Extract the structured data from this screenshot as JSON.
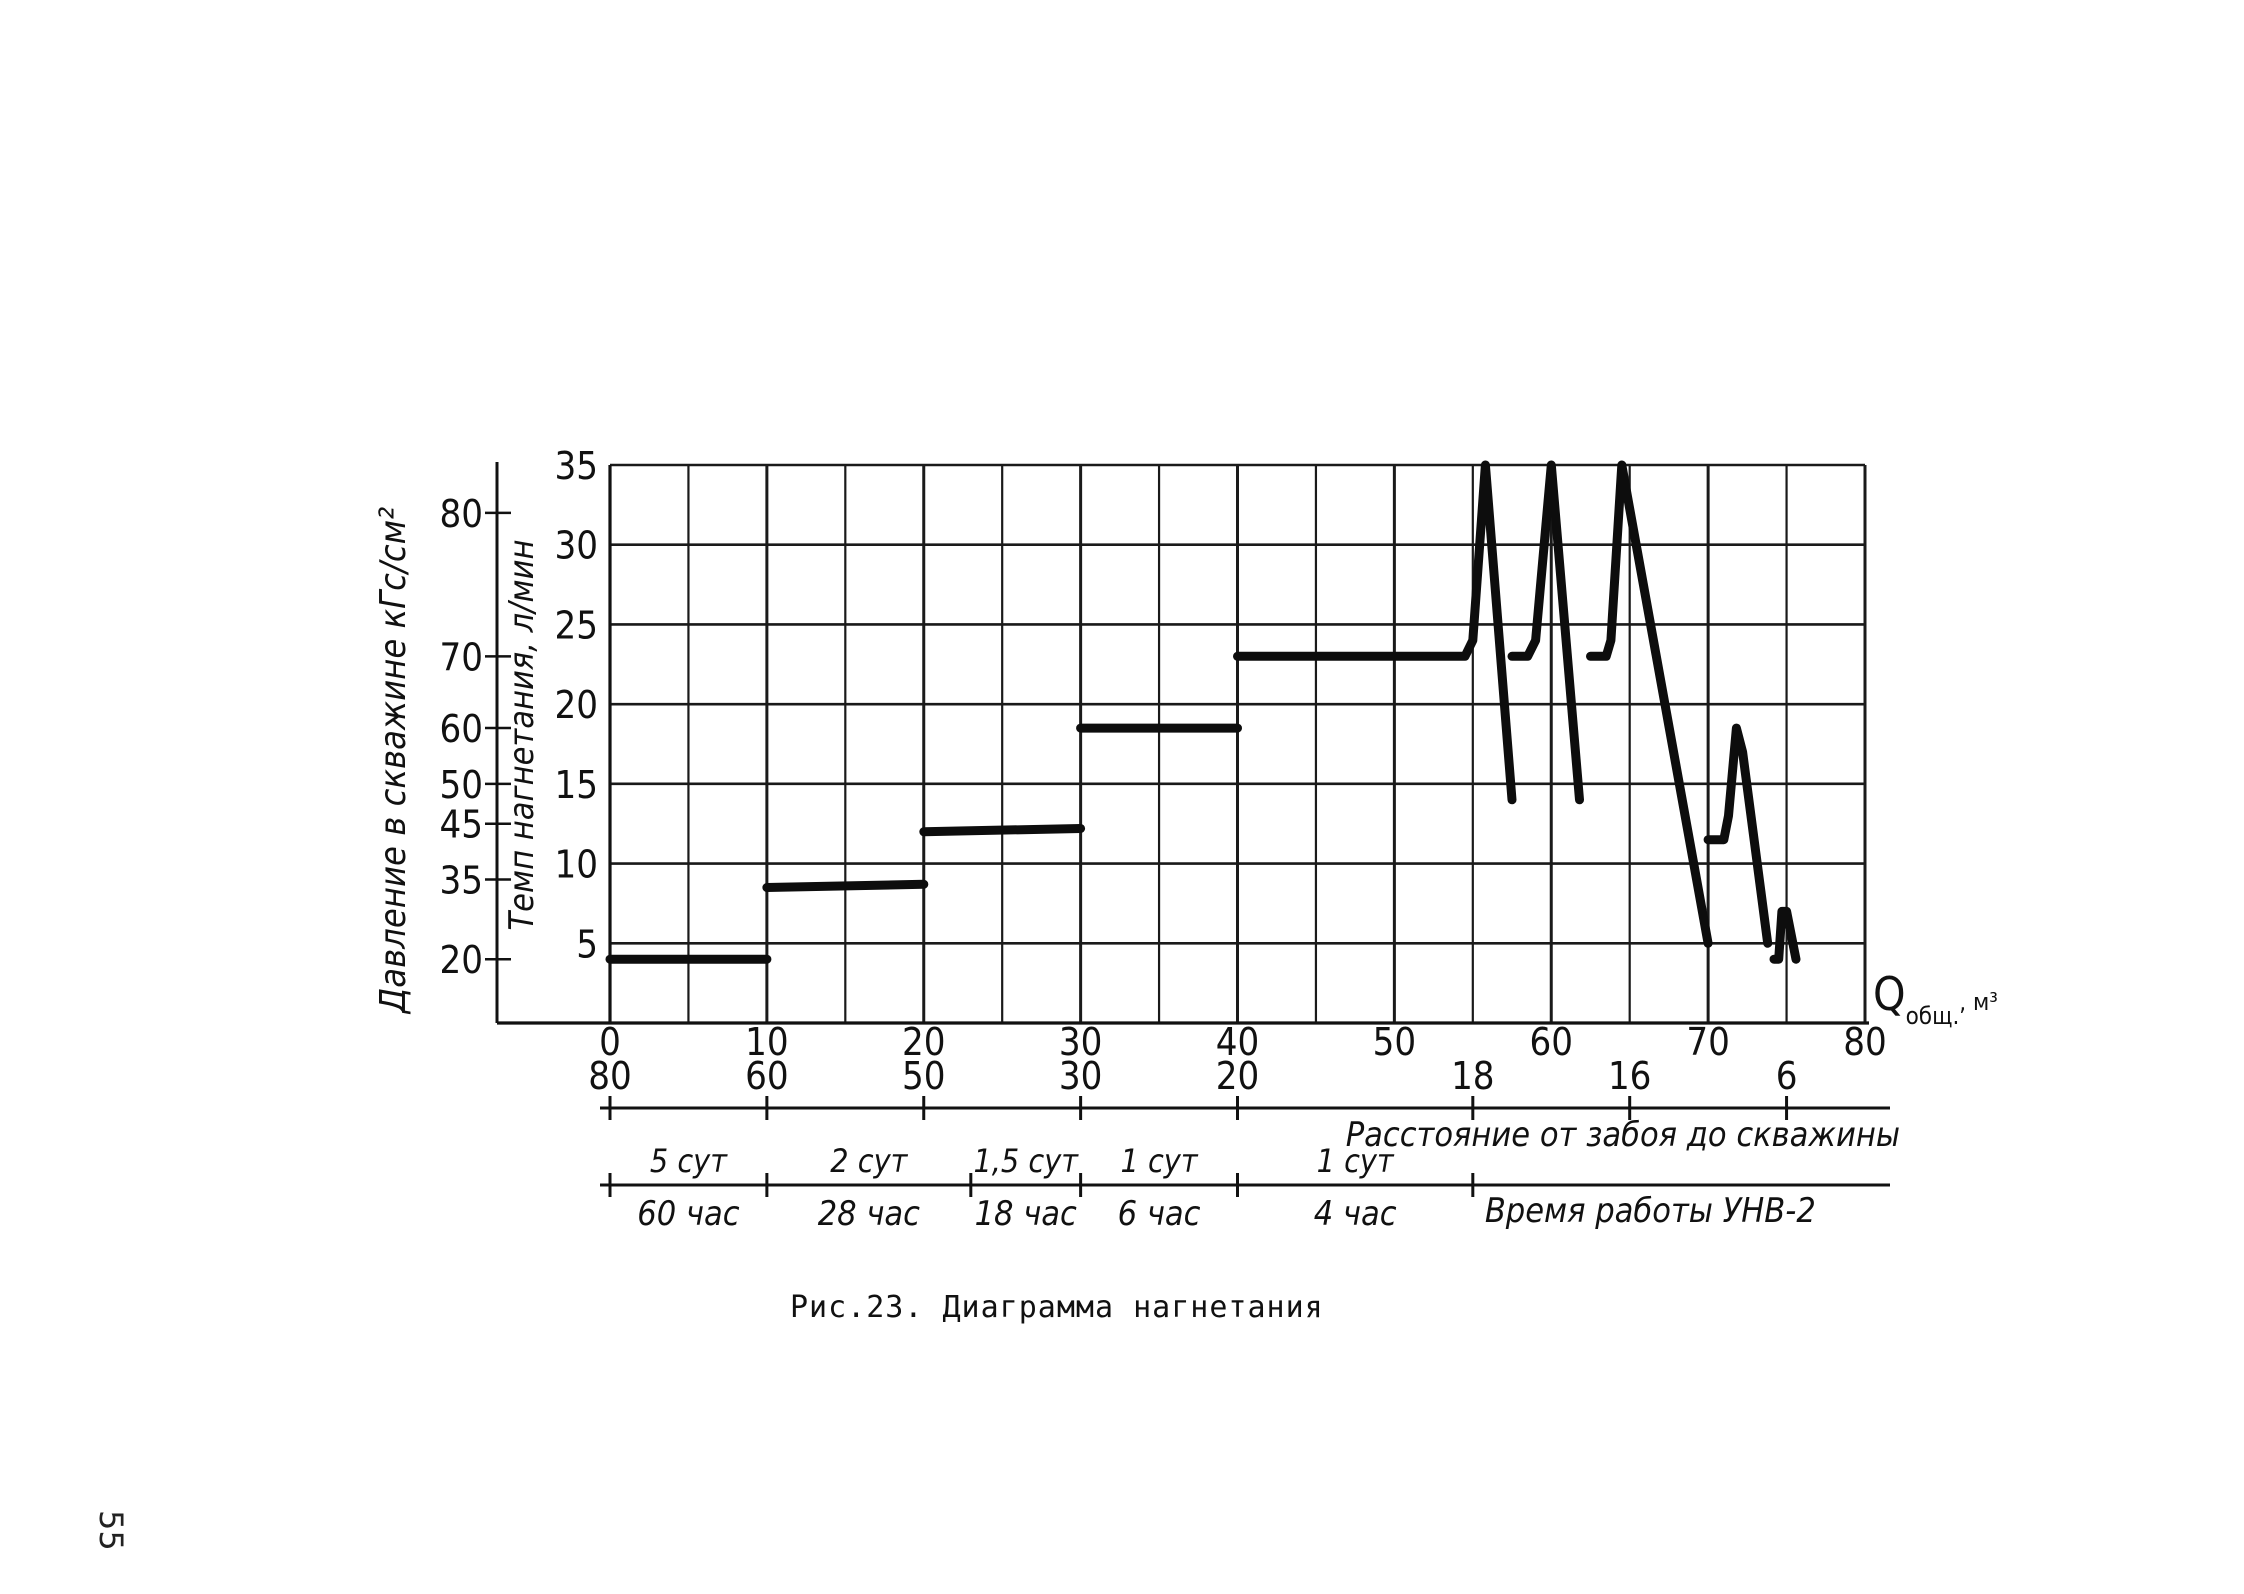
{
  "figure": {
    "caption": "Рис.23. Диаграмма нагнетания",
    "page_number": "55"
  },
  "chart_data": {
    "type": "line",
    "title": "",
    "x_axis": {
      "label_main": "Q",
      "label_sub": "общ.",
      "label_unit": ", м³",
      "range": [
        0,
        80
      ],
      "ticks": [
        0,
        10,
        20,
        30,
        40,
        50,
        60,
        70,
        80
      ],
      "tick_labels": [
        "0",
        "10",
        "20",
        "30",
        "40",
        "50",
        "60",
        "70",
        "80"
      ]
    },
    "y_axis_rate": {
      "label": "Темп нагнетания, л/мин",
      "range": [
        0,
        35
      ],
      "ticks": [
        5,
        10,
        15,
        20,
        25,
        30,
        35
      ],
      "tick_labels": [
        "5",
        "10",
        "15",
        "20",
        "25",
        "30",
        "35"
      ]
    },
    "y_axis_pressure": {
      "label": "Давление в скважине кГс/см²",
      "tick_labels": [
        "20",
        "35",
        "45",
        "50",
        "60",
        "70",
        "80"
      ],
      "tick_rate_equivalents": [
        4,
        9,
        12.5,
        15,
        18.5,
        23,
        32
      ]
    },
    "grid": true,
    "series": [
      {
        "segments": [
          [
            [
              0,
              4
            ],
            [
              10,
              4
            ]
          ],
          [
            [
              10,
              8.5
            ],
            [
              20,
              8.7
            ]
          ],
          [
            [
              20,
              12
            ],
            [
              30,
              12.2
            ]
          ],
          [
            [
              30,
              18.5
            ],
            [
              40,
              18.5
            ]
          ],
          [
            [
              40,
              23
            ],
            [
              54.5,
              23
            ],
            [
              55,
              24
            ],
            [
              55.8,
              35
            ],
            [
              57.5,
              14
            ]
          ],
          [
            [
              57.5,
              23
            ],
            [
              58.5,
              23
            ],
            [
              59,
              24
            ],
            [
              60,
              35
            ],
            [
              61.8,
              14
            ]
          ],
          [
            [
              62.5,
              23
            ],
            [
              63.5,
              23
            ],
            [
              63.8,
              24
            ],
            [
              64.5,
              35
            ],
            [
              70,
              5
            ]
          ],
          [
            [
              70,
              11.5
            ],
            [
              71,
              11.5
            ],
            [
              71.3,
              13
            ],
            [
              71.8,
              18.5
            ],
            [
              72.2,
              17
            ],
            [
              73.8,
              5
            ]
          ],
          [
            [
              74.2,
              4
            ],
            [
              74.5,
              4
            ],
            [
              74.7,
              7
            ],
            [
              75,
              7
            ],
            [
              75.6,
              4
            ]
          ]
        ]
      }
    ],
    "distance_scale": {
      "label": "Расстояние от забоя до скважины",
      "ticks": [
        {
          "q": 0,
          "label": "80"
        },
        {
          "q": 10,
          "label": "60"
        },
        {
          "q": 20,
          "label": "50"
        },
        {
          "q": 30,
          "label": "30"
        },
        {
          "q": 40,
          "label": "20"
        },
        {
          "q": 55,
          "label": "18"
        },
        {
          "q": 65,
          "label": "16"
        },
        {
          "q": 75,
          "label": "6"
        }
      ]
    },
    "time_scale": {
      "label": "Время работы УНВ-2",
      "tick_positions": [
        0,
        10,
        23,
        30,
        40,
        55
      ],
      "periods": [
        {
          "from": 0,
          "to": 10,
          "days": "5 сут",
          "hours": "60 час"
        },
        {
          "from": 10,
          "to": 23,
          "days": "2 сут",
          "hours": "28 час"
        },
        {
          "from": 23,
          "to": 30,
          "days": "1,5 сут",
          "hours": "18 час"
        },
        {
          "from": 30,
          "to": 40,
          "days": "1 сут",
          "hours": "6 час"
        },
        {
          "from": 40,
          "to": 55,
          "days": "1 сут",
          "hours": "4 час"
        }
      ]
    }
  }
}
